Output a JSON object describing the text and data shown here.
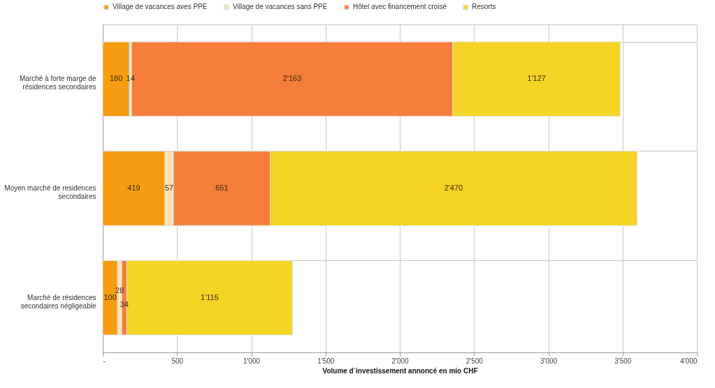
{
  "chart_data": {
    "type": "bar",
    "orientation": "horizontal",
    "stacked": true,
    "categories": [
      "Marché à forte marge de résidences secondaires",
      "Moyen marché de residences secondaires",
      "Marché de résidences secondaires négligeable"
    ],
    "series": [
      {
        "name": "Village de vacances aves PPE",
        "color": "#f59d0f",
        "values": [
          180,
          419,
          100
        ],
        "value_labels": [
          "180",
          "419",
          "100"
        ]
      },
      {
        "name": "Village de vacances sans PPE",
        "color": "#fce3b3",
        "values": [
          14,
          57,
          28
        ],
        "value_labels": [
          "14",
          "57",
          "28"
        ]
      },
      {
        "name": "Hôtel avec financement croisé",
        "color": "#f47e3a",
        "values": [
          2163,
          651,
          34
        ],
        "value_labels": [
          "2'163",
          "651",
          "34"
        ]
      },
      {
        "name": "Resorts",
        "color": "#f4d424",
        "values": [
          1127,
          2470,
          1115
        ],
        "value_labels": [
          "1'127",
          "2'470",
          "1'115"
        ]
      }
    ],
    "xlim": [
      0,
      4000
    ],
    "xticks": [
      {
        "value": 0,
        "label": "-"
      },
      {
        "value": 500,
        "label": "500"
      },
      {
        "value": 1000,
        "label": "1'000"
      },
      {
        "value": 1500,
        "label": "1'500"
      },
      {
        "value": 2000,
        "label": "2'000"
      },
      {
        "value": 2500,
        "label": "2'500"
      },
      {
        "value": 3000,
        "label": "3'000"
      },
      {
        "value": 3500,
        "label": "3'500"
      },
      {
        "value": 4000,
        "label": "4'000"
      }
    ],
    "xlabel": "Volume d`investissement annoncé en mio CHF",
    "grid": true,
    "legend": "top"
  }
}
